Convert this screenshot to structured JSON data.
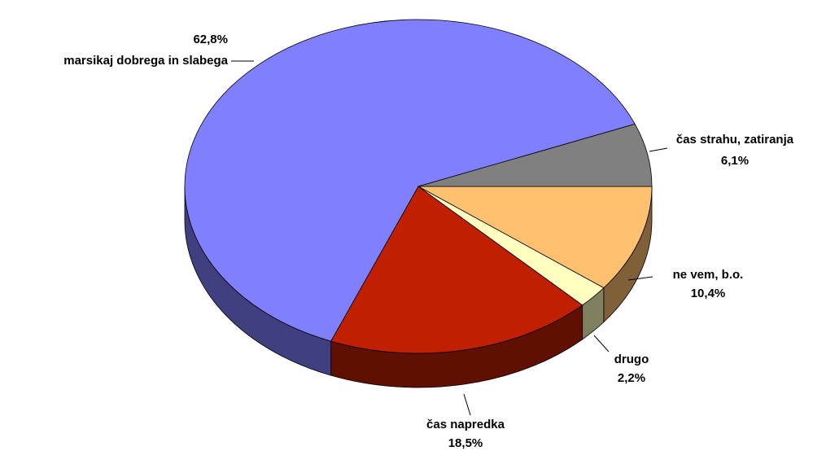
{
  "chart_data": {
    "type": "pie",
    "categories": [
      "ne vem, b.o.",
      "drugo",
      "čas napredka",
      "marsikaj dobrega in slabega",
      "čas strahu, zatiranja"
    ],
    "values": [
      10.4,
      2.2,
      18.5,
      62.8,
      6.1
    ],
    "value_labels": [
      "10,4%",
      "2,2%",
      "18,5%",
      "62,8%",
      "6,1%"
    ],
    "colors": [
      "#ffc070",
      "#ffffc0",
      "#c02000",
      "#8080ff",
      "#808080"
    ]
  }
}
